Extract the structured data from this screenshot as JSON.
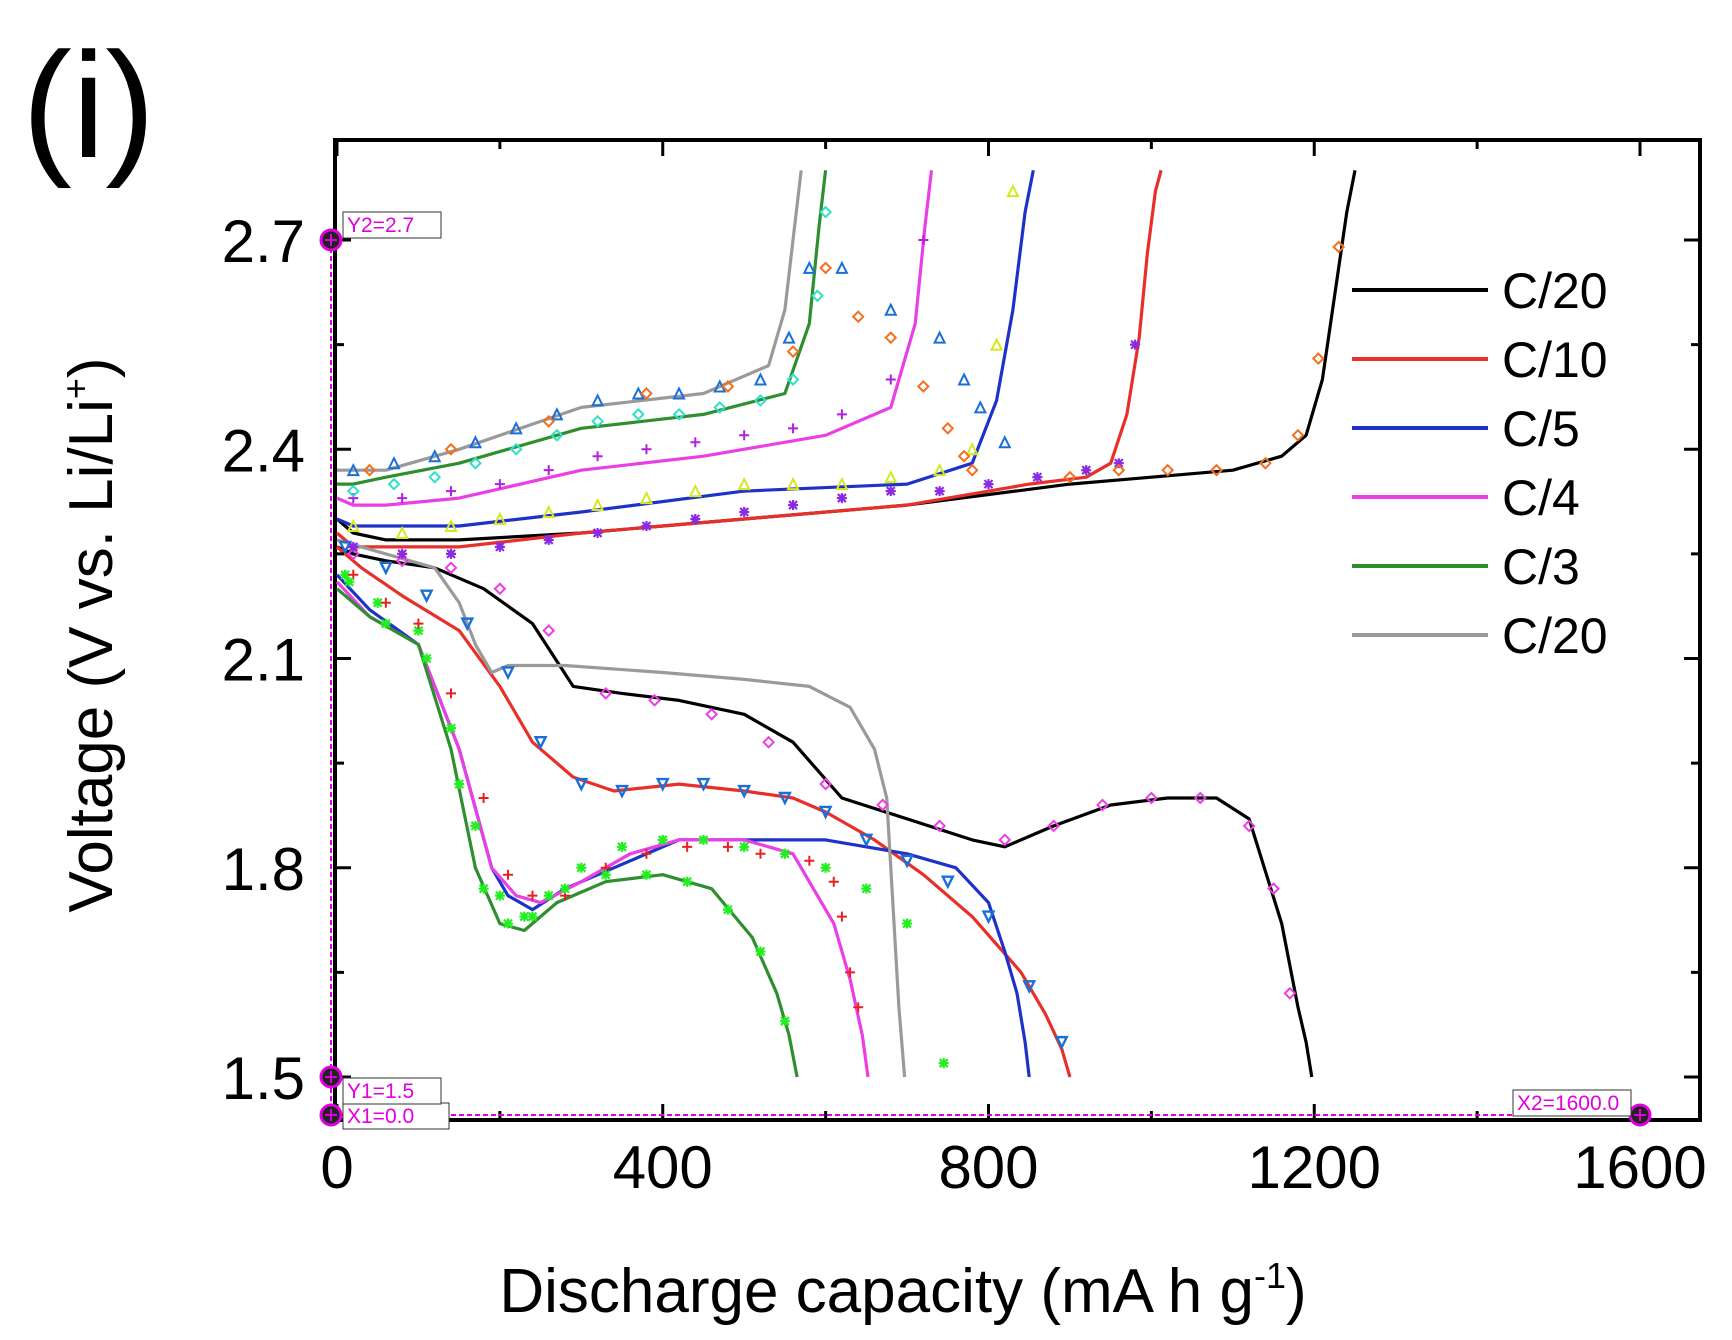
{
  "panel_label": "(i)",
  "chart_data": {
    "type": "line",
    "title": "",
    "xlabel": "Discharge capacity (mA h g",
    "xlabel_sup": "-1",
    "xlabel_end": ")",
    "ylabel": "Voltage (V vs. Li/Li",
    "ylabel_sup": "+",
    "ylabel_end": ")",
    "xlim": [
      0,
      1600
    ],
    "ylim": [
      1.45,
      2.85
    ],
    "xticks": [
      0,
      400,
      800,
      1200,
      1600
    ],
    "xtick_labels": [
      "0",
      "400",
      "800",
      "1200",
      "1600"
    ],
    "yticks": [
      1.5,
      1.8,
      2.1,
      2.4,
      2.7
    ],
    "ytick_labels": [
      "1.5",
      "1.8",
      "2.1",
      "2.4",
      "2.7"
    ],
    "legend_position": "right",
    "legend": [
      {
        "name": "C/20",
        "color": "#000000"
      },
      {
        "name": "C/10",
        "color": "#e8302a"
      },
      {
        "name": "C/5",
        "color": "#1f32c8"
      },
      {
        "name": "C/4",
        "color": "#ea3fe6"
      },
      {
        "name": "C/3",
        "color": "#2f8f2f"
      },
      {
        "name": "C/20",
        "color": "#9a9a9a"
      }
    ],
    "series": [
      {
        "color": "#000000",
        "segment": "discharge",
        "x": [
          0,
          20,
          60,
          120,
          180,
          240,
          290,
          350,
          420,
          500,
          560,
          620,
          700,
          780,
          820,
          880,
          950,
          1020,
          1080,
          1120,
          1160,
          1180,
          1190,
          1197
        ],
        "y": [
          2.26,
          2.25,
          2.24,
          2.23,
          2.2,
          2.15,
          2.06,
          2.05,
          2.04,
          2.02,
          1.98,
          1.9,
          1.87,
          1.84,
          1.83,
          1.86,
          1.89,
          1.9,
          1.9,
          1.87,
          1.72,
          1.6,
          1.55,
          1.5
        ]
      },
      {
        "color": "#000000",
        "segment": "charge",
        "x": [
          0,
          20,
          60,
          150,
          300,
          500,
          700,
          900,
          1000,
          1100,
          1160,
          1190,
          1210,
          1225,
          1240,
          1250
        ],
        "y": [
          2.3,
          2.28,
          2.27,
          2.27,
          2.28,
          2.3,
          2.32,
          2.35,
          2.36,
          2.37,
          2.39,
          2.42,
          2.5,
          2.62,
          2.74,
          2.8
        ]
      },
      {
        "color": "#e8302a",
        "segment": "discharge",
        "x": [
          0,
          30,
          80,
          150,
          200,
          240,
          290,
          340,
          420,
          500,
          560,
          600,
          660,
          720,
          780,
          840,
          870,
          890,
          900
        ],
        "y": [
          2.26,
          2.23,
          2.19,
          2.14,
          2.06,
          1.98,
          1.93,
          1.91,
          1.92,
          1.91,
          1.9,
          1.88,
          1.84,
          1.79,
          1.73,
          1.65,
          1.59,
          1.54,
          1.5
        ]
      },
      {
        "color": "#e8302a",
        "segment": "charge",
        "x": [
          0,
          20,
          60,
          150,
          300,
          500,
          700,
          850,
          920,
          950,
          970,
          985,
          995,
          1005,
          1012
        ],
        "y": [
          2.28,
          2.26,
          2.26,
          2.26,
          2.28,
          2.3,
          2.32,
          2.35,
          2.36,
          2.38,
          2.45,
          2.56,
          2.68,
          2.77,
          2.8
        ]
      },
      {
        "color": "#1f32c8",
        "segment": "discharge",
        "x": [
          0,
          40,
          100,
          150,
          190,
          210,
          240,
          280,
          340,
          420,
          500,
          600,
          700,
          760,
          800,
          820,
          835,
          845,
          850
        ],
        "y": [
          2.22,
          2.17,
          2.12,
          1.97,
          1.8,
          1.76,
          1.74,
          1.77,
          1.8,
          1.84,
          1.84,
          1.84,
          1.82,
          1.8,
          1.75,
          1.68,
          1.62,
          1.55,
          1.5
        ]
      },
      {
        "color": "#1f32c8",
        "segment": "charge",
        "x": [
          0,
          20,
          50,
          150,
          300,
          500,
          700,
          780,
          810,
          830,
          845,
          855
        ],
        "y": [
          2.3,
          2.29,
          2.29,
          2.29,
          2.31,
          2.34,
          2.35,
          2.38,
          2.47,
          2.6,
          2.74,
          2.8
        ]
      },
      {
        "color": "#ea3fe6",
        "segment": "discharge",
        "x": [
          0,
          40,
          100,
          150,
          190,
          220,
          250,
          300,
          360,
          420,
          500,
          560,
          610,
          630,
          645,
          652
        ],
        "y": [
          2.21,
          2.16,
          2.12,
          1.97,
          1.8,
          1.76,
          1.75,
          1.78,
          1.82,
          1.84,
          1.84,
          1.82,
          1.72,
          1.64,
          1.56,
          1.5
        ]
      },
      {
        "color": "#ea3fe6",
        "segment": "charge",
        "x": [
          0,
          20,
          60,
          150,
          300,
          450,
          600,
          680,
          710,
          722,
          730
        ],
        "y": [
          2.33,
          2.32,
          2.32,
          2.33,
          2.37,
          2.39,
          2.42,
          2.46,
          2.58,
          2.72,
          2.8
        ]
      },
      {
        "color": "#2f8f2f",
        "segment": "discharge",
        "x": [
          0,
          40,
          100,
          140,
          170,
          200,
          230,
          270,
          330,
          400,
          460,
          510,
          540,
          555,
          565
        ],
        "y": [
          2.2,
          2.16,
          2.12,
          1.97,
          1.8,
          1.72,
          1.71,
          1.75,
          1.78,
          1.79,
          1.77,
          1.7,
          1.62,
          1.56,
          1.5
        ]
      },
      {
        "color": "#2f8f2f",
        "segment": "charge",
        "x": [
          0,
          20,
          60,
          150,
          300,
          450,
          550,
          580,
          592,
          600
        ],
        "y": [
          2.35,
          2.35,
          2.36,
          2.38,
          2.43,
          2.45,
          2.48,
          2.58,
          2.72,
          2.8
        ]
      },
      {
        "color": "#9a9a9a",
        "segment": "discharge",
        "x": [
          0,
          60,
          120,
          150,
          170,
          190,
          210,
          280,
          400,
          500,
          580,
          630,
          660,
          675,
          680,
          690,
          697
        ],
        "y": [
          2.27,
          2.25,
          2.23,
          2.18,
          2.12,
          2.08,
          2.09,
          2.09,
          2.08,
          2.07,
          2.06,
          2.03,
          1.97,
          1.9,
          1.8,
          1.6,
          1.5
        ]
      },
      {
        "color": "#9a9a9a",
        "segment": "charge",
        "x": [
          0,
          20,
          60,
          150,
          300,
          450,
          530,
          550,
          560,
          570
        ],
        "y": [
          2.37,
          2.37,
          2.37,
          2.4,
          2.46,
          2.48,
          2.52,
          2.6,
          2.7,
          2.8
        ]
      }
    ],
    "markers": [
      {
        "symbol": "diamond",
        "color": "#ea3fe6",
        "x": [
          20,
          80,
          140,
          200,
          260,
          330,
          390,
          460,
          530,
          600,
          670,
          740,
          820,
          880,
          940,
          1000,
          1060,
          1120,
          1150,
          1170
        ],
        "y": [
          2.25,
          2.24,
          2.23,
          2.2,
          2.14,
          2.05,
          2.04,
          2.02,
          1.98,
          1.92,
          1.89,
          1.86,
          1.84,
          1.86,
          1.89,
          1.9,
          1.9,
          1.86,
          1.77,
          1.62
        ]
      },
      {
        "symbol": "triangle-down",
        "color": "#1a6fd8",
        "x": [
          10,
          60,
          110,
          160,
          210,
          250,
          300,
          350,
          400,
          450,
          500,
          550,
          600,
          650,
          700,
          750,
          800,
          850,
          890
        ],
        "y": [
          2.26,
          2.23,
          2.19,
          2.15,
          2.08,
          1.98,
          1.92,
          1.91,
          1.92,
          1.92,
          1.91,
          1.9,
          1.88,
          1.84,
          1.81,
          1.78,
          1.73,
          1.63,
          1.55
        ]
      },
      {
        "symbol": "asterisk",
        "color": "#22ee22",
        "x": [
          10,
          50,
          100,
          140,
          170,
          200,
          230,
          260,
          300,
          350,
          400,
          450,
          500,
          550,
          600,
          650,
          700,
          745
        ],
        "y": [
          2.22,
          2.18,
          2.14,
          2.0,
          1.86,
          1.76,
          1.73,
          1.76,
          1.8,
          1.83,
          1.84,
          1.84,
          1.83,
          1.82,
          1.8,
          1.77,
          1.72,
          1.52
        ]
      },
      {
        "symbol": "plus",
        "color": "#e82020",
        "x": [
          20,
          60,
          100,
          140,
          180,
          210,
          240,
          280,
          330,
          380,
          430,
          480,
          520,
          580,
          610,
          620,
          630,
          640
        ],
        "y": [
          2.22,
          2.18,
          2.15,
          2.05,
          1.9,
          1.79,
          1.76,
          1.76,
          1.8,
          1.82,
          1.83,
          1.83,
          1.82,
          1.81,
          1.78,
          1.73,
          1.65,
          1.6
        ]
      },
      {
        "symbol": "asterisk",
        "color": "#22ee22",
        "x": [
          15,
          60,
          110,
          150,
          180,
          210,
          240,
          280,
          330,
          380,
          430,
          480,
          520,
          550
        ],
        "y": [
          2.21,
          2.15,
          2.1,
          1.92,
          1.77,
          1.72,
          1.73,
          1.77,
          1.79,
          1.79,
          1.78,
          1.74,
          1.68,
          1.58
        ]
      },
      {
        "symbol": "asterisk",
        "color": "#8a2be2",
        "x": [
          20,
          80,
          140,
          200,
          260,
          320,
          380,
          440,
          500,
          560,
          620,
          680,
          740,
          800,
          860,
          920,
          960,
          980
        ],
        "y": [
          2.26,
          2.25,
          2.25,
          2.26,
          2.27,
          2.28,
          2.29,
          2.3,
          2.31,
          2.32,
          2.33,
          2.34,
          2.34,
          2.35,
          2.36,
          2.37,
          2.38,
          2.55
        ]
      },
      {
        "symbol": "diamond",
        "color": "#f07020",
        "x": [
          900,
          960,
          1020,
          1080,
          1140,
          1180,
          1205,
          1230
        ],
        "y": [
          2.36,
          2.37,
          2.37,
          2.37,
          2.38,
          2.42,
          2.53,
          2.69
        ]
      },
      {
        "symbol": "triangle",
        "color": "#d4e820",
        "x": [
          20,
          80,
          140,
          200,
          260,
          320,
          380,
          440,
          500,
          560,
          620,
          680,
          740,
          780,
          810,
          830
        ],
        "y": [
          2.29,
          2.28,
          2.29,
          2.3,
          2.31,
          2.32,
          2.33,
          2.34,
          2.35,
          2.35,
          2.35,
          2.36,
          2.37,
          2.4,
          2.55,
          2.77
        ]
      },
      {
        "symbol": "plus",
        "color": "#b020e0",
        "x": [
          20,
          80,
          140,
          200,
          260,
          320,
          380,
          440,
          500,
          560,
          620,
          680,
          720
        ],
        "y": [
          2.33,
          2.33,
          2.34,
          2.35,
          2.37,
          2.39,
          2.4,
          2.41,
          2.42,
          2.43,
          2.45,
          2.5,
          2.7
        ]
      },
      {
        "symbol": "diamond",
        "color": "#30e0c8",
        "x": [
          20,
          70,
          120,
          170,
          220,
          270,
          320,
          370,
          420,
          470,
          520,
          560,
          590,
          600
        ],
        "y": [
          2.34,
          2.35,
          2.36,
          2.38,
          2.4,
          2.42,
          2.44,
          2.45,
          2.45,
          2.46,
          2.47,
          2.5,
          2.62,
          2.74
        ]
      },
      {
        "symbol": "triangle",
        "color": "#1a6fd8",
        "x": [
          20,
          70,
          120,
          170,
          220,
          270,
          320,
          370,
          420,
          470,
          520,
          555,
          580,
          620,
          680,
          740,
          770,
          790,
          820
        ],
        "y": [
          2.37,
          2.38,
          2.39,
          2.41,
          2.43,
          2.45,
          2.47,
          2.48,
          2.48,
          2.49,
          2.5,
          2.56,
          2.66,
          2.66,
          2.6,
          2.56,
          2.5,
          2.46,
          2.41
        ]
      },
      {
        "symbol": "diamond",
        "color": "#f07020",
        "x": [
          40,
          140,
          260,
          380,
          480,
          560,
          600,
          640,
          680,
          720,
          750,
          770,
          780
        ],
        "y": [
          2.37,
          2.4,
          2.44,
          2.48,
          2.49,
          2.54,
          2.66,
          2.59,
          2.56,
          2.49,
          2.43,
          2.39,
          2.37
        ]
      }
    ]
  },
  "calibration": {
    "y2_label": "Y2=2.7",
    "y1_label": "Y1=1.5",
    "x1_label": "X1=0.0",
    "x2_label": "X2=1600.0",
    "color": "#e000e0"
  }
}
